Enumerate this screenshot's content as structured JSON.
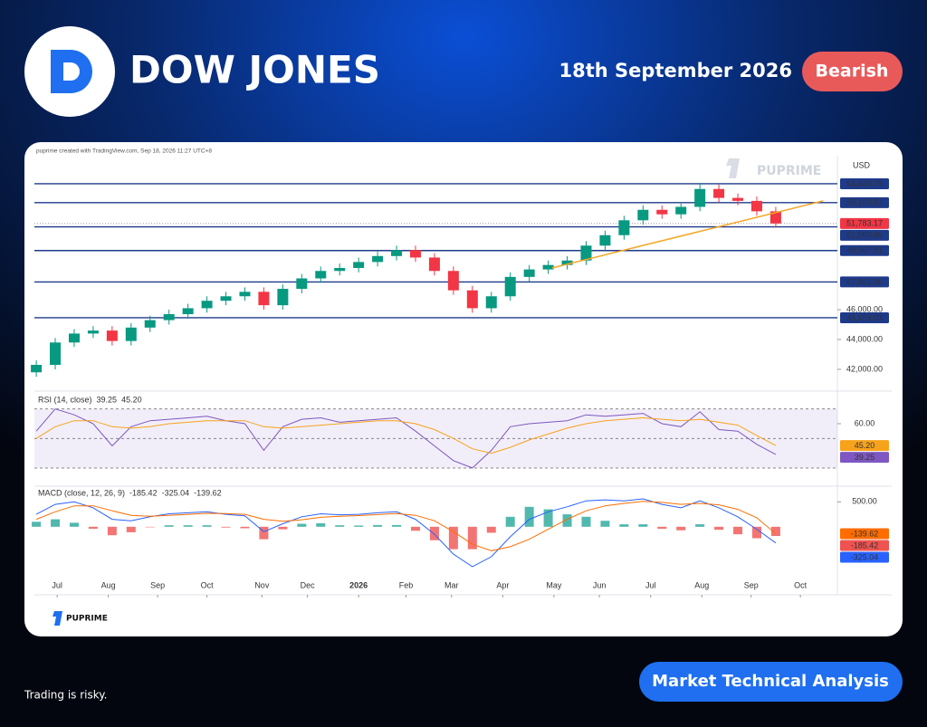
{
  "header": {
    "title": "DOW JONES",
    "date": "18th September 2026",
    "sentiment": "Bearish"
  },
  "card": {
    "caption": "puprime created with TradingView.com, Sep 18, 2026 11:27 UTC+8",
    "watermark": "PUPRIME"
  },
  "footer": {
    "disclaimer": "Trading is risky.",
    "button": "Market Technical Analysis",
    "brand": "PUPRIME"
  },
  "chart_data": [
    {
      "type": "candlestick",
      "unit": "USD",
      "xlim": [
        -0.1,
        42.25
      ],
      "ylim": [
        40660,
        56330
      ],
      "yticks": [
        {
          "value": 42000,
          "label": "42,000.00"
        },
        {
          "value": 44000,
          "label": "44,000.00"
        },
        {
          "value": 46000,
          "label": "46,000.00"
        }
      ],
      "up_color": "#089981",
      "down_color": "#f23645",
      "open": [
        41800,
        42300,
        43800,
        44400,
        44600,
        43900,
        44800,
        45300,
        45700,
        46100,
        46600,
        46900,
        47200,
        46300,
        47400,
        48100,
        48600,
        48800,
        49200,
        49600,
        50000,
        49500,
        48600,
        47300,
        46100,
        46900,
        48200,
        48700,
        49000,
        49300,
        50300,
        51000,
        52000,
        52700,
        52400,
        52900,
        54100,
        53500,
        53300,
        52600
      ],
      "high": [
        42600,
        44100,
        44700,
        44900,
        44900,
        45100,
        45600,
        46000,
        46400,
        46900,
        47200,
        47500,
        47500,
        47700,
        48400,
        48900,
        49100,
        49500,
        49900,
        50300,
        50300,
        49800,
        48900,
        47600,
        47200,
        48500,
        49000,
        49300,
        49600,
        50600,
        51300,
        52300,
        53000,
        53000,
        53200,
        54500,
        54400,
        53800,
        53600,
        52900
      ],
      "low": [
        41500,
        42000,
        43500,
        44100,
        43600,
        43600,
        44500,
        45000,
        45400,
        45800,
        46300,
        46600,
        46000,
        46000,
        47100,
        47800,
        48300,
        48500,
        48900,
        49300,
        49200,
        48300,
        47000,
        45800,
        45800,
        46600,
        47900,
        48400,
        48700,
        49000,
        50000,
        50700,
        51700,
        52100,
        52100,
        52600,
        53200,
        53000,
        52300,
        51500
      ],
      "close": [
        42300,
        43800,
        44400,
        44600,
        43900,
        44800,
        45300,
        45700,
        46100,
        46600,
        46900,
        47200,
        46300,
        47400,
        48100,
        48600,
        48800,
        49200,
        49600,
        50000,
        49500,
        48600,
        47300,
        46100,
        46900,
        48200,
        48700,
        49000,
        49300,
        50300,
        51000,
        52000,
        52700,
        52400,
        52900,
        54100,
        53500,
        53300,
        52600,
        51783.17
      ],
      "level_color": "#1e3a8a",
      "levels": [
        {
          "value": 54449.78,
          "label": "54,449.78"
        },
        {
          "value": 53180.82,
          "label": "53,180.82"
        },
        {
          "value": 51560.86,
          "label": "51,560.86"
        },
        {
          "value": 49967.91,
          "label": "49,967.91"
        },
        {
          "value": 47861.96,
          "label": "47,861.96"
        },
        {
          "value": 45459.03,
          "label": "45,459.03"
        }
      ],
      "last_price": {
        "value": 51783.17,
        "label": "51,783.17",
        "color": "#f23645"
      },
      "trendline": {
        "x": [
          27.2,
          41.5
        ],
        "y": [
          48800,
          53300
        ],
        "color": "#f5a623"
      }
    },
    {
      "type": "line",
      "title": "RSI (14, close)",
      "xlim": [
        -0.1,
        42.25
      ],
      "ylim": [
        22,
        79
      ],
      "yticks": [
        {
          "value": 60,
          "label": "60.00"
        }
      ],
      "levels": [
        70,
        50,
        30
      ],
      "band_color": "#7e57c2",
      "series": [
        {
          "color": "#7e57c2",
          "values": [
            55,
            70,
            66,
            60,
            45,
            58,
            62,
            63,
            64,
            65,
            62,
            60,
            42,
            58,
            63,
            64,
            61,
            62,
            63,
            64,
            55,
            45,
            35,
            30,
            42,
            58,
            60,
            61,
            62,
            66,
            65,
            66,
            67,
            60,
            58,
            68,
            56,
            55,
            46,
            39.25
          ],
          "tag": 39.25
        },
        {
          "color": "#f7a21b",
          "values": [
            50,
            58,
            62,
            62,
            58,
            57,
            58,
            60,
            61,
            62,
            62,
            62,
            58,
            57,
            58,
            59,
            60,
            61,
            62,
            62,
            60,
            56,
            50,
            43,
            40,
            44,
            49,
            53,
            57,
            60,
            62,
            63,
            64,
            63,
            62,
            63,
            61,
            59,
            52,
            45.2
          ],
          "tag": {
            "value": 45.2,
            "label": "45.20"
          }
        }
      ]
    },
    {
      "type": "macd",
      "title": "MACD (close, 12, 26, 9)",
      "xlim": [
        -0.1,
        42.25
      ],
      "ylim": [
        -1020,
        760
      ],
      "yticks": [
        {
          "value": 500,
          "label": "500.00"
        }
      ],
      "xticks": [
        {
          "value": 1.1,
          "label": "Jul"
        },
        {
          "value": 3.8,
          "label": "Aug"
        },
        {
          "value": 6.4,
          "label": "Sep"
        },
        {
          "value": 9.0,
          "label": "Oct"
        },
        {
          "value": 11.9,
          "label": "Nov"
        },
        {
          "value": 14.3,
          "label": "Dec"
        },
        {
          "value": 17.0,
          "label": "2026"
        },
        {
          "value": 19.5,
          "label": "Feb"
        },
        {
          "value": 21.9,
          "label": "Mar"
        },
        {
          "value": 24.6,
          "label": "Apr"
        },
        {
          "value": 27.3,
          "label": "May"
        },
        {
          "value": 29.7,
          "label": "Jun"
        },
        {
          "value": 32.4,
          "label": "Jul"
        },
        {
          "value": 35.1,
          "label": "Aug"
        },
        {
          "value": 37.7,
          "label": "Sep"
        },
        {
          "value": 40.3,
          "label": "Oct"
        }
      ],
      "series": [
        {
          "kind": "bar",
          "color": "#ef5350",
          "up_color": "#26a69a",
          "values": [
            100,
            150,
            80,
            -40,
            -170,
            -110,
            -10,
            30,
            30,
            30,
            -15,
            -30,
            -250,
            -50,
            60,
            70,
            30,
            25,
            35,
            35,
            -80,
            -270,
            -450,
            -450,
            -120,
            200,
            400,
            350,
            250,
            200,
            120,
            50,
            50,
            -40,
            -70,
            50,
            -60,
            -150,
            -230,
            -185.42
          ],
          "tag": -185.42
        },
        {
          "kind": "line",
          "color": "#2962ff",
          "values": [
            250,
            450,
            500,
            380,
            150,
            120,
            200,
            260,
            280,
            300,
            250,
            220,
            -100,
            60,
            200,
            260,
            240,
            250,
            280,
            300,
            150,
            -150,
            -550,
            -800,
            -600,
            -200,
            150,
            300,
            400,
            520,
            540,
            520,
            560,
            450,
            380,
            520,
            380,
            200,
            -50,
            -325.04
          ],
          "tag": -325.04
        },
        {
          "kind": "line",
          "color": "#ff6d00",
          "values": [
            150,
            300,
            420,
            420,
            320,
            230,
            210,
            230,
            250,
            270,
            265,
            250,
            150,
            110,
            140,
            190,
            210,
            225,
            245,
            265,
            230,
            120,
            -100,
            -350,
            -480,
            -400,
            -250,
            -50,
            150,
            320,
            420,
            470,
            510,
            490,
            450,
            470,
            440,
            350,
            180,
            -139.62
          ],
          "tag": -139.62
        }
      ]
    }
  ]
}
